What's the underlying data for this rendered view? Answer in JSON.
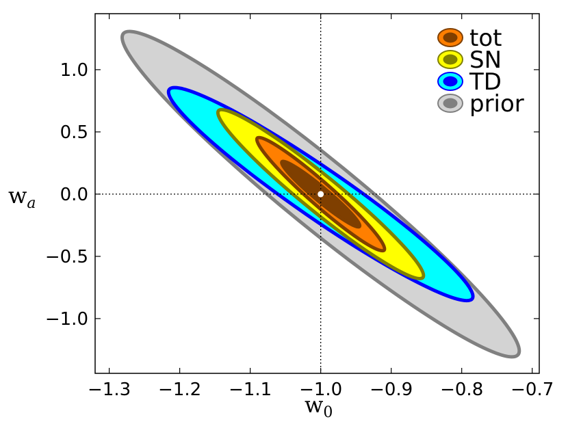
{
  "chart_data": {
    "type": "contour",
    "title": "",
    "xlabel": "w",
    "xlabel_sub": "0",
    "ylabel": "w",
    "ylabel_sub": "a",
    "xlim": [
      -1.32,
      -0.69
    ],
    "ylim": [
      -1.44,
      1.45
    ],
    "x_ticks": [
      -1.3,
      -1.2,
      -1.1,
      -1.0,
      -0.9,
      -0.8,
      -0.7
    ],
    "x_tick_labels": [
      "−1.3",
      "−1.2",
      "−1.1",
      "−1.0",
      "−0.9",
      "−0.8",
      "−0.7"
    ],
    "y_ticks": [
      1.0,
      0.5,
      0.0,
      -0.5,
      -1.0
    ],
    "y_tick_labels": [
      "1.0",
      "0.5",
      "0.0",
      "−0.5",
      "−1.0"
    ],
    "grid": false,
    "legend_position": "top-right",
    "fiducial": {
      "w0": -1.0,
      "wa": 0.0
    },
    "reference_lines": {
      "x": -1.0,
      "y": 0.0
    },
    "series": [
      {
        "name": "prior",
        "outer_color": "#d3d3d3",
        "inner_color": "#808080",
        "edge_color": "#808080",
        "major_end": {
          "w0": -0.72,
          "wa": -1.29
        }
      },
      {
        "name": "TD",
        "outer_color": "#00ffff",
        "inner_color": "#0000ff",
        "edge_color": "#0000ff",
        "major_end": {
          "w0": -0.785,
          "wa": -0.84
        }
      },
      {
        "name": "SN",
        "outer_color": "#ffff00",
        "inner_color": "#808000",
        "edge_color": "#808000",
        "major_end": {
          "w0": -0.855,
          "wa": -0.67
        }
      },
      {
        "name": "tot",
        "outer_color": "#ff7f00",
        "inner_color": "#7f3f00",
        "edge_color": "#7f3f00",
        "major_end": {
          "w0": -0.91,
          "wa": -0.45
        }
      },
      {
        "name": "tot-1sigma",
        "outer_color": "#7f3f00",
        "inner_color": "#7f3f00",
        "edge_color": "#7f3f00",
        "major_end": {
          "w0": -0.945,
          "wa": -0.26
        }
      }
    ],
    "legend": [
      {
        "name": "tot",
        "outer_color": "#ff7f00",
        "inner_color": "#7f3f00"
      },
      {
        "name": "SN",
        "outer_color": "#ffff00",
        "inner_color": "#808000"
      },
      {
        "name": "TD",
        "outer_color": "#00ffff",
        "inner_color": "#0000ff"
      },
      {
        "name": "prior",
        "outer_color": "#d3d3d3",
        "inner_color": "#808080"
      }
    ]
  }
}
